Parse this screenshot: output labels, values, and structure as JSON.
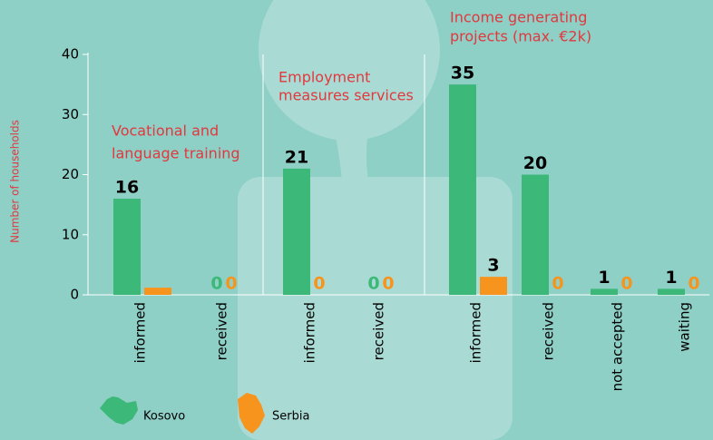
{
  "chart_data": {
    "type": "bar",
    "y_label": "Number of households",
    "categories": [
      "informed",
      "received",
      "informed",
      "received",
      "informed",
      "received",
      "not accepted",
      "waiting"
    ],
    "groups": [
      {
        "lines": [
          "Vocational and",
          "language training"
        ]
      },
      {
        "lines": [
          "Employment",
          "measures services"
        ]
      },
      {
        "lines": [
          "Income generating",
          "projects (max. €2k)"
        ]
      }
    ],
    "series": [
      {
        "name": "Kosovo",
        "color": "#3cb878",
        "values": [
          16,
          0,
          21,
          0,
          35,
          20,
          1,
          1
        ]
      },
      {
        "name": "Serbia",
        "color": "#f7941d",
        "values": [
          1.2,
          0,
          0,
          0,
          3,
          0,
          0,
          0
        ],
        "value_labels": [
          null,
          "0",
          "0",
          "0",
          "3",
          "0",
          "0",
          "0"
        ]
      }
    ],
    "ylim": [
      0,
      40
    ],
    "yticks": [
      0,
      10,
      20,
      30,
      40
    ]
  }
}
